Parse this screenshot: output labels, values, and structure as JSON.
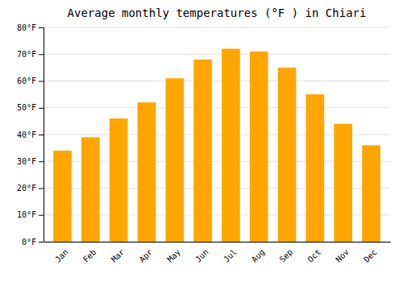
{
  "chart_data": {
    "type": "bar",
    "title": "Average monthly temperatures (°F ) in Chiari",
    "categories": [
      "Jan",
      "Feb",
      "Mar",
      "Apr",
      "May",
      "Jun",
      "Jul",
      "Aug",
      "Sep",
      "Oct",
      "Nov",
      "Dec"
    ],
    "values": [
      34,
      39,
      46,
      52,
      61,
      68,
      72,
      71,
      65,
      55,
      44,
      36
    ],
    "color": "#FFA500",
    "ylim": [
      0,
      80
    ],
    "yticks": [
      {
        "value": 0,
        "label": "0°F"
      },
      {
        "value": 10,
        "label": "10°F"
      },
      {
        "value": 20,
        "label": "20°F"
      },
      {
        "value": 30,
        "label": "30°F"
      },
      {
        "value": 40,
        "label": "40°F"
      },
      {
        "value": 50,
        "label": "50°F"
      },
      {
        "value": 60,
        "label": "60°F"
      },
      {
        "value": 70,
        "label": "70°F"
      },
      {
        "value": 80,
        "label": "80°F"
      }
    ],
    "grid": true
  }
}
